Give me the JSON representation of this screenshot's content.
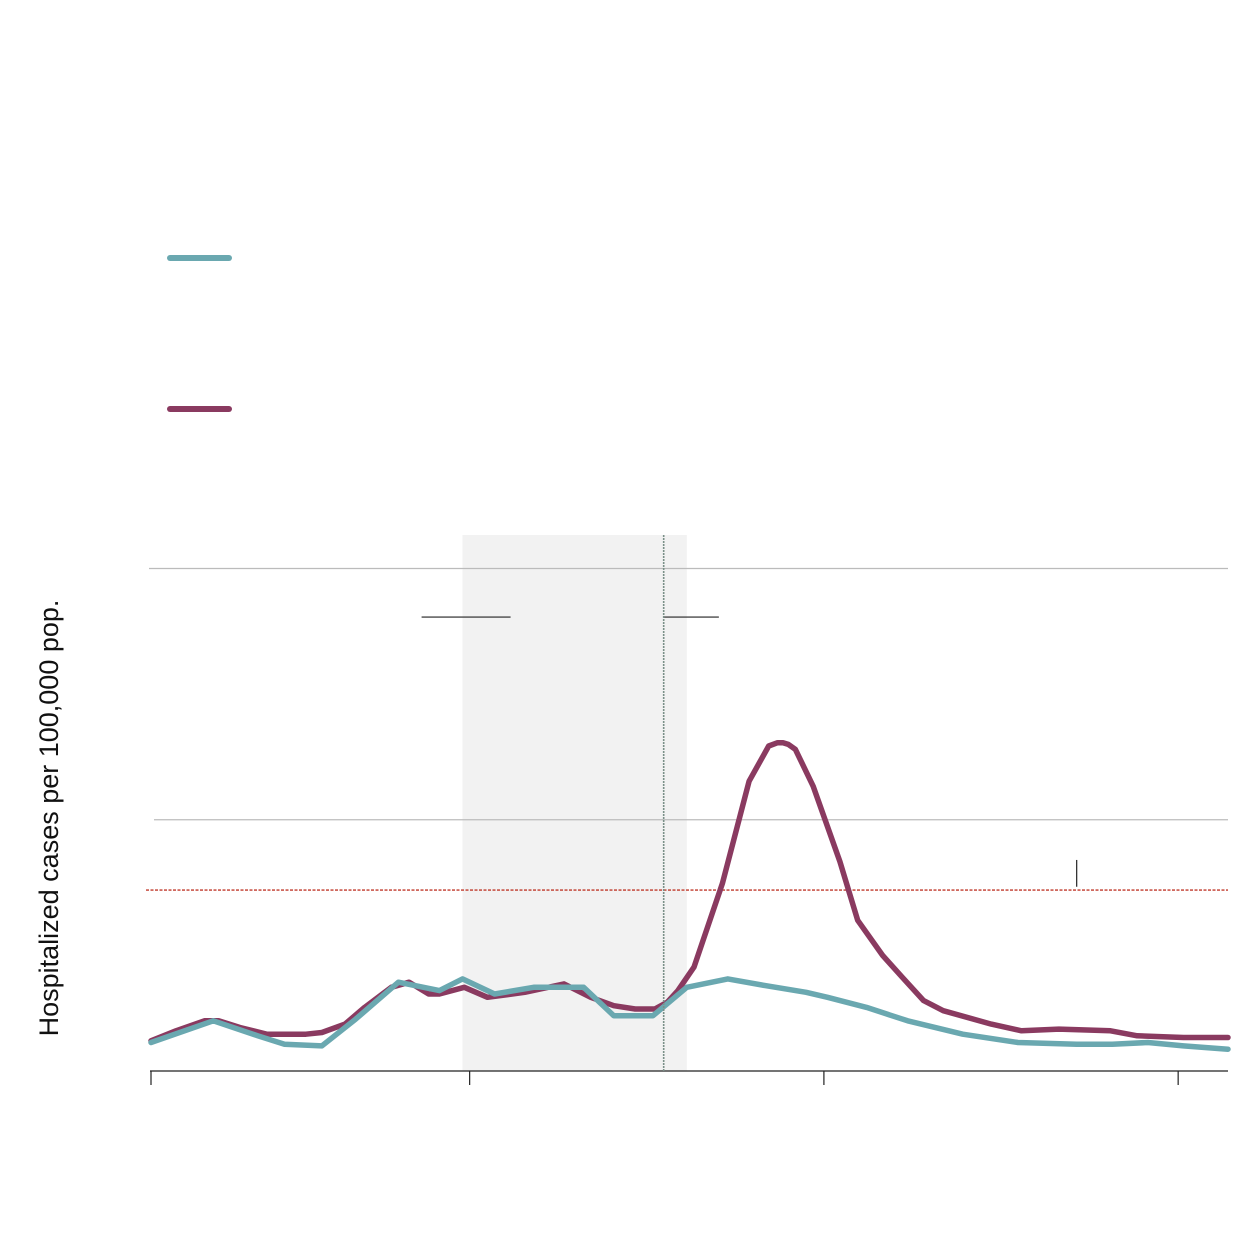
{
  "chart_data": {
    "type": "line",
    "ylabel": "Hospitalized cases per 100,000 pop.",
    "ylim": [
      0,
      32
    ],
    "gridlines": [
      15,
      30
    ],
    "threshold": 10.8,
    "x_range": [
      0,
      60.5
    ],
    "x_ticks": [
      0,
      17.9,
      37.8,
      57.7
    ],
    "shaded_interval": [
      17.5,
      30.1
    ],
    "vline": 28.8,
    "annotation_marks": {
      "horizontal": [
        {
          "x1": 15.2,
          "x2": 20.2,
          "y": 27.1
        },
        {
          "x1": 28.8,
          "x2": 31.9,
          "y": 27.1
        }
      ],
      "vertical": [
        {
          "x": 52.0,
          "y1": 11.0,
          "y2": 12.6
        }
      ]
    },
    "colors": {
      "series_teal": "#6aa8b0",
      "series_plum": "#8a3a60",
      "threshold": "#c0392b",
      "grid": "#bbbbbb",
      "shade": "#f2f2f2",
      "vline": "#7a9088"
    },
    "series": [
      {
        "color": "#6aa8b0",
        "x": [
          0,
          3.5,
          6,
          7.5,
          9.6,
          11.5,
          13.9,
          16.2,
          17.5,
          19.3,
          21.5,
          22.9,
          24.3,
          26.0,
          28.2,
          30.1,
          32.4,
          34.5,
          36.8,
          38.0,
          40.2,
          42.5,
          45.6,
          48.7,
          52.0,
          54.0,
          56.0,
          58.0,
          60.5
        ],
        "y": [
          1.7,
          3.0,
          2.1,
          1.6,
          1.5,
          3.1,
          5.3,
          4.8,
          5.5,
          4.6,
          5.0,
          5.0,
          5.0,
          3.3,
          3.3,
          5.0,
          5.5,
          5.1,
          4.7,
          4.4,
          3.8,
          3.0,
          2.2,
          1.7,
          1.6,
          1.6,
          1.7,
          1.5,
          1.3
        ]
      },
      {
        "color": "#8a3a60",
        "x": [
          0,
          1.4,
          3.0,
          3.8,
          5.0,
          6.5,
          8.7,
          9.6,
          10.9,
          12.0,
          13.5,
          14.5,
          15.6,
          16.2,
          17.6,
          18.9,
          21.0,
          23.2,
          24.7,
          26.0,
          27.2,
          28.3,
          29.0,
          29.6,
          30.5,
          32.1,
          33.6,
          34.7,
          35.2,
          35.5,
          35.8,
          36.2,
          37.2,
          38.7,
          39.7,
          41.1,
          42.2,
          43.4,
          44.5,
          47.2,
          48.9,
          51.0,
          53.9,
          55.4,
          58.0,
          59.2,
          60.5
        ],
        "y": [
          1.8,
          2.4,
          3.0,
          3.0,
          2.6,
          2.2,
          2.2,
          2.3,
          2.8,
          3.8,
          5.0,
          5.3,
          4.6,
          4.6,
          5.0,
          4.4,
          4.7,
          5.2,
          4.4,
          3.9,
          3.7,
          3.7,
          4.1,
          4.8,
          6.2,
          11.2,
          17.3,
          19.4,
          19.6,
          19.6,
          19.5,
          19.2,
          17.0,
          12.5,
          9.0,
          6.9,
          5.6,
          4.2,
          3.6,
          2.8,
          2.4,
          2.5,
          2.4,
          2.1,
          2.0,
          2.0,
          2.0
        ]
      }
    ]
  }
}
